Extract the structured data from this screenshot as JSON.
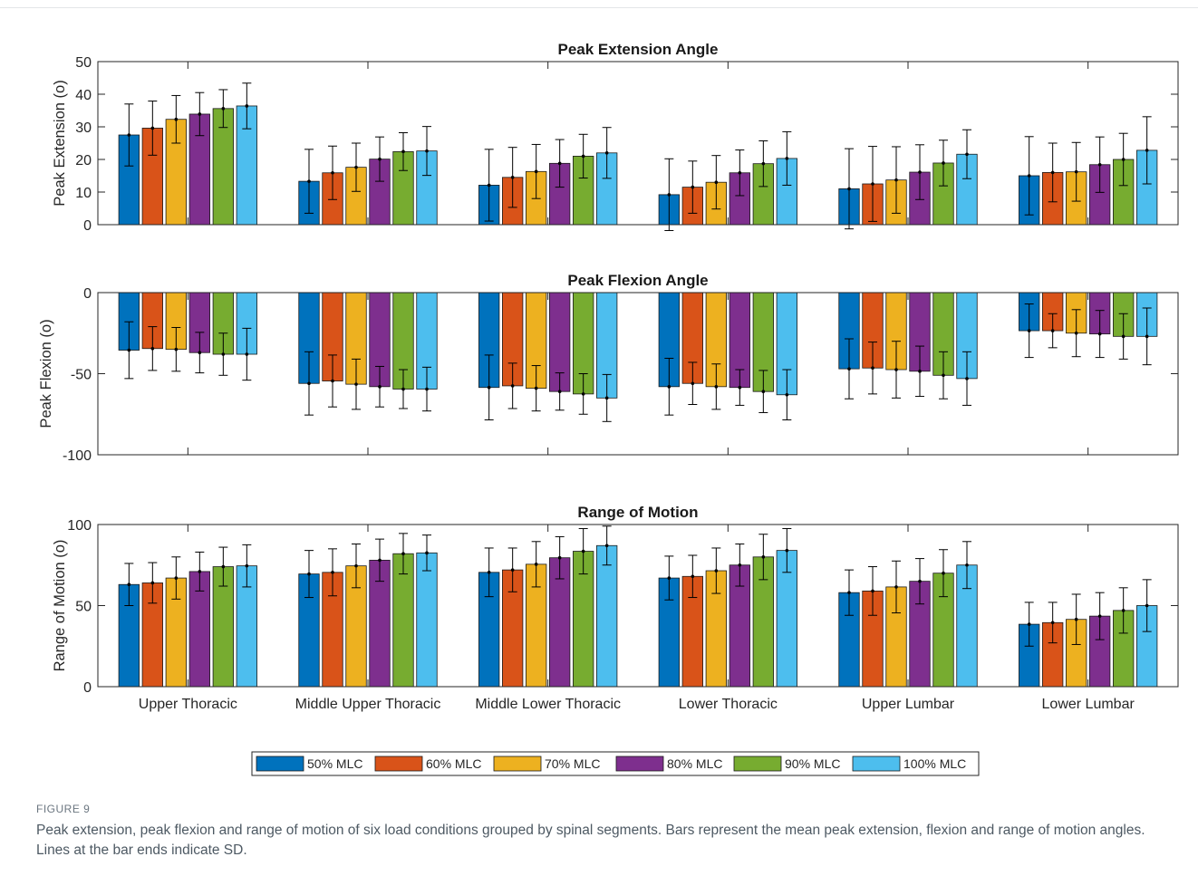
{
  "figure": {
    "label": "FIGURE 9",
    "caption": "Peak extension, peak flexion and range of motion of six load conditions grouped by spinal segments. Bars represent the mean peak extension, flexion and range of motion angles. Lines at the bar ends indicate SD."
  },
  "colors": [
    "#0072BD",
    "#D95319",
    "#EDB120",
    "#7E2F8E",
    "#77AC30",
    "#4DBEEE"
  ],
  "chart_data": [
    {
      "type": "bar",
      "title": "Peak Extension Angle",
      "ylabel": "Peak Extension (o)",
      "ylim": [
        0,
        50
      ],
      "yticks": [
        0,
        10,
        20,
        30,
        40,
        50
      ],
      "categories": [
        "Upper Thoracic",
        "Middle Upper Thoracic",
        "Middle Lower Thoracic",
        "Lower Thoracic",
        "Upper Lumbar",
        "Lower Lumbar"
      ],
      "show_xtick_labels": false,
      "series": [
        {
          "name": "50% MLC",
          "values": [
            27.5,
            13.3,
            12.1,
            9.2,
            11.0,
            15.0
          ],
          "sd": [
            9.5,
            9.8,
            11.0,
            11.0,
            12.3,
            12.0
          ]
        },
        {
          "name": "60% MLC",
          "values": [
            29.6,
            15.9,
            14.5,
            11.5,
            12.5,
            16.0
          ],
          "sd": [
            8.3,
            8.2,
            9.2,
            8.0,
            11.5,
            9.0
          ]
        },
        {
          "name": "70% MLC",
          "values": [
            32.3,
            17.6,
            16.3,
            13.0,
            13.7,
            16.2
          ],
          "sd": [
            7.3,
            7.4,
            8.3,
            8.2,
            10.2,
            9.0
          ]
        },
        {
          "name": "80% MLC",
          "values": [
            33.9,
            20.1,
            18.8,
            15.9,
            16.1,
            18.4
          ],
          "sd": [
            6.6,
            6.8,
            7.3,
            7.0,
            8.4,
            8.5
          ]
        },
        {
          "name": "90% MLC",
          "values": [
            35.6,
            22.4,
            21.0,
            18.7,
            18.9,
            20.0
          ],
          "sd": [
            5.8,
            5.8,
            6.7,
            7.0,
            7.0,
            8.0
          ]
        },
        {
          "name": "100% MLC",
          "values": [
            36.4,
            22.6,
            22.0,
            20.3,
            21.6,
            22.8
          ],
          "sd": [
            7.0,
            7.5,
            7.8,
            8.2,
            7.5,
            10.3
          ]
        }
      ]
    },
    {
      "type": "bar",
      "title": "Peak Flexion Angle",
      "ylabel": "Peak Flexion (o)",
      "ylim": [
        -100,
        0
      ],
      "yticks": [
        -100,
        -50,
        0
      ],
      "categories": [
        "Upper Thoracic",
        "Middle Upper Thoracic",
        "Middle Lower Thoracic",
        "Lower Thoracic",
        "Upper Lumbar",
        "Lower Lumbar"
      ],
      "show_xtick_labels": false,
      "series": [
        {
          "name": "50% MLC",
          "values": [
            -35.5,
            -56.0,
            -58.5,
            -58.0,
            -47.0,
            -23.5
          ],
          "sd": [
            17.5,
            19.5,
            20.0,
            17.5,
            18.5,
            16.5
          ]
        },
        {
          "name": "60% MLC",
          "values": [
            -34.5,
            -54.5,
            -57.5,
            -56.0,
            -46.5,
            -23.5
          ],
          "sd": [
            13.5,
            16.0,
            14.0,
            13.0,
            16.0,
            10.5
          ]
        },
        {
          "name": "70% MLC",
          "values": [
            -35.0,
            -56.5,
            -59.0,
            -58.0,
            -47.5,
            -25.0
          ],
          "sd": [
            13.5,
            15.5,
            14.0,
            14.0,
            17.5,
            14.5
          ]
        },
        {
          "name": "80% MLC",
          "values": [
            -37.0,
            -58.0,
            -61.0,
            -58.5,
            -48.5,
            -25.5
          ],
          "sd": [
            12.5,
            12.5,
            11.5,
            11.0,
            15.5,
            14.5
          ]
        },
        {
          "name": "90% MLC",
          "values": [
            -38.0,
            -59.5,
            -62.5,
            -61.0,
            -51.0,
            -27.0
          ],
          "sd": [
            13.0,
            12.0,
            12.5,
            13.0,
            14.5,
            14.0
          ]
        },
        {
          "name": "100% MLC",
          "values": [
            -38.0,
            -59.5,
            -65.0,
            -63.0,
            -53.0,
            -27.0
          ],
          "sd": [
            16.0,
            13.5,
            14.5,
            15.5,
            16.5,
            17.5
          ]
        }
      ]
    },
    {
      "type": "bar",
      "title": "Range of Motion",
      "ylabel": "Range of Motion (o)",
      "ylim": [
        0,
        100
      ],
      "yticks": [
        0,
        50,
        100
      ],
      "categories": [
        "Upper Thoracic",
        "Middle Upper Thoracic",
        "Middle Lower Thoracic",
        "Lower Thoracic",
        "Upper Lumbar",
        "Lower Lumbar"
      ],
      "show_xtick_labels": true,
      "series": [
        {
          "name": "50% MLC",
          "values": [
            63.0,
            69.5,
            70.5,
            67.0,
            58.0,
            38.5
          ],
          "sd": [
            13.0,
            14.5,
            15.0,
            13.5,
            14.0,
            13.5
          ]
        },
        {
          "name": "60% MLC",
          "values": [
            64.0,
            70.5,
            72.0,
            68.0,
            59.0,
            39.5
          ],
          "sd": [
            12.5,
            14.5,
            13.5,
            13.0,
            15.0,
            12.5
          ]
        },
        {
          "name": "70% MLC",
          "values": [
            67.0,
            74.5,
            75.5,
            71.5,
            61.5,
            41.5
          ],
          "sd": [
            13.0,
            13.5,
            14.0,
            14.0,
            16.0,
            15.5
          ]
        },
        {
          "name": "80% MLC",
          "values": [
            71.0,
            78.0,
            79.5,
            75.0,
            65.0,
            43.5
          ],
          "sd": [
            12.0,
            13.0,
            13.0,
            13.0,
            14.0,
            14.5
          ]
        },
        {
          "name": "90% MLC",
          "values": [
            74.0,
            82.0,
            83.5,
            80.0,
            70.0,
            47.0
          ],
          "sd": [
            12.0,
            12.5,
            14.0,
            14.0,
            14.5,
            14.0
          ]
        },
        {
          "name": "100% MLC",
          "values": [
            74.5,
            82.5,
            87.0,
            84.0,
            75.0,
            50.0
          ],
          "sd": [
            13.0,
            11.0,
            12.0,
            13.5,
            14.5,
            16.0
          ]
        }
      ]
    }
  ],
  "legend": {
    "placement": "bottom-center",
    "entries": [
      "50% MLC",
      "60% MLC",
      "70% MLC",
      "80% MLC",
      "90% MLC",
      "100% MLC"
    ]
  }
}
